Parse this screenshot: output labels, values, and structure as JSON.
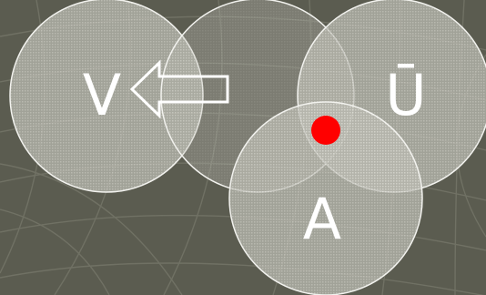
{
  "diagram": {
    "labels": {
      "v": "V",
      "u": "Ū",
      "a": "A"
    },
    "colors": {
      "background": "#5b5c50",
      "grid_lines": "#6f7064",
      "circle_fill": "#c9c9c0",
      "circle_stroke": "#f2f2ee",
      "marker": "#ff0000"
    },
    "arrow_direction": "left",
    "marker_shape": "filled-dot"
  }
}
